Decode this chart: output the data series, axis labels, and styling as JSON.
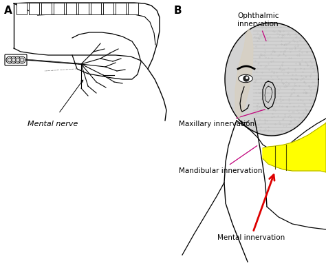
{
  "panel_A_label": "A",
  "panel_B_label": "B",
  "mental_nerve_label": "Mental nerve",
  "ophthalmic_label": "Ophthalmic\ninnervation",
  "maxillary_label": "Maxillary innervation",
  "mandibular_label": "Mandibular innervation",
  "mental_innervation_label": "Mental innervation",
  "bg_color": "#ffffff",
  "line_color_pink": "#c0007a",
  "line_color_red": "#dd0000",
  "line_color_black": "#000000",
  "annotation_fontsize": 7.5,
  "panel_label_fontsize": 11,
  "yellow_color": "#ffff00",
  "gray_head": "#b0b0b0",
  "gray_hatch": "#888888"
}
